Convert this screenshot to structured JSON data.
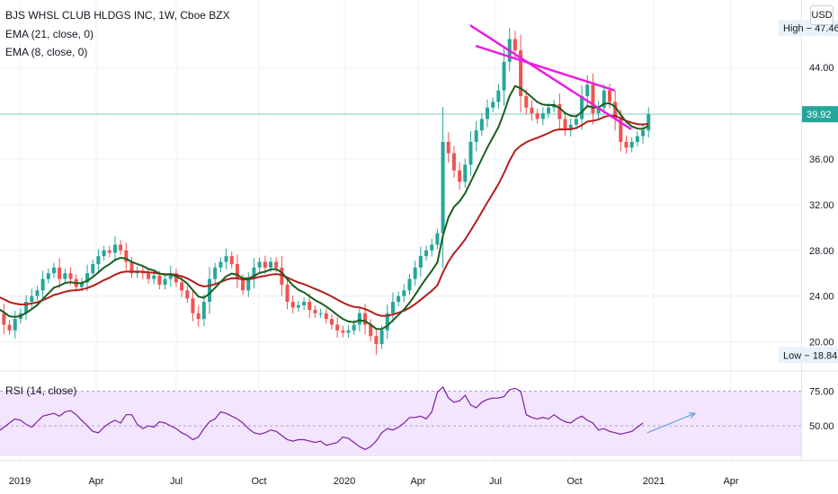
{
  "header": {
    "title": "BJS WHSL CLUB HLDGS INC, 1W, Cboe BZX",
    "ema21_label": "EMA (21, close, 0)",
    "ema8_label": "EMA (8, close, 0)",
    "currency": "USD"
  },
  "rsi_label": "RSI (14, close)",
  "colors": {
    "up": "#26a69a",
    "down": "#ef5350",
    "ema21": "#b71c1c",
    "ema8": "#1b5e20",
    "trendline": "#e91ee3",
    "rsi": "#7b1fa2",
    "rsi_band": "#f3e5fd",
    "arrow": "#4a90e2",
    "price_line": "#26a69a",
    "price_box": "#26a69a"
  },
  "price_axis": {
    "ticks": [
      "20.00",
      "24.00",
      "28.00",
      "32.00",
      "36.00",
      "44.00"
    ],
    "high_label": "High",
    "high_value": "47.46",
    "low_label": "Low",
    "low_value": "18.84",
    "last_price": "39.92"
  },
  "rsi_axis": {
    "ticks": [
      "75.00",
      "50.00"
    ]
  },
  "time_axis": {
    "labels": [
      "2019",
      "Apr",
      "Jul",
      "Oct",
      "2020",
      "Apr",
      "Jul",
      "Oct",
      "2021",
      "Apr"
    ]
  },
  "chart_data": {
    "type": "candlestick",
    "timeframe": "1W",
    "ylim": [
      18.0,
      48.5
    ],
    "closes": [
      23.0,
      22.5,
      21.5,
      21.0,
      22.0,
      22.5,
      23.5,
      24.0,
      24.5,
      25.5,
      26.0,
      26.5,
      25.5,
      26.0,
      25.5,
      24.8,
      25.2,
      26.0,
      26.8,
      27.5,
      28.0,
      27.8,
      28.5,
      28.0,
      27.0,
      26.0,
      26.2,
      26.0,
      25.5,
      25.8,
      25.0,
      25.5,
      26.0,
      25.2,
      24.5,
      23.8,
      22.5,
      22.0,
      23.5,
      25.5,
      26.5,
      27.0,
      27.5,
      26.8,
      25.5,
      24.5,
      25.5,
      26.5,
      27.0,
      26.5,
      27.0,
      26.5,
      25.0,
      23.5,
      23.0,
      23.2,
      23.5,
      22.8,
      22.5,
      22.5,
      22.0,
      21.5,
      21.0,
      20.8,
      21.0,
      21.5,
      22.5,
      21.5,
      20.5,
      19.8,
      21.0,
      22.5,
      23.5,
      24.0,
      24.5,
      25.5,
      26.5,
      27.5,
      28.0,
      28.5,
      29.5,
      37.5,
      36.5,
      35.0,
      34.0,
      35.5,
      37.5,
      38.5,
      39.5,
      40.5,
      41.0,
      42.0,
      44.5,
      46.5,
      45.5,
      41.5,
      40.5,
      40.0,
      39.5,
      40.0,
      40.5,
      40.8,
      39.5,
      38.5,
      39.0,
      39.5,
      41.5,
      42.5,
      40.0,
      40.5,
      42.0,
      41.0,
      39.5,
      37.5,
      37.0,
      37.5,
      38.0,
      38.5,
      39.92
    ],
    "ema8_start": 23.0,
    "ema21_start": 24.2,
    "high": 47.46,
    "low": 18.84,
    "last": 39.92,
    "trendlines": [
      {
        "from": [
          "2020-08-10",
          47.7
        ],
        "to": [
          "2021-03-01",
          38.6
        ]
      },
      {
        "from": [
          "2020-08-17",
          45.9
        ],
        "to": [
          "2021-02-08",
          42.0
        ]
      }
    ],
    "rsi": {
      "ylim": [
        30,
        85
      ],
      "bands": [
        50,
        75
      ],
      "values": [
        41,
        46,
        49,
        52,
        55,
        54,
        51,
        49,
        53,
        57,
        58,
        59,
        57,
        60,
        61,
        58,
        54,
        50,
        46,
        45,
        49,
        52,
        54,
        52,
        58,
        58,
        51,
        48,
        50,
        49,
        53,
        52,
        50,
        48,
        45,
        43,
        40,
        42,
        48,
        53,
        55,
        60,
        59,
        57,
        55,
        52,
        48,
        45,
        44,
        45,
        47,
        46,
        43,
        40,
        39,
        40,
        40,
        39,
        38,
        39,
        36,
        37,
        38,
        42,
        41,
        38,
        35,
        33,
        35,
        39,
        45,
        48,
        47,
        49,
        52,
        56,
        56,
        57,
        55,
        60,
        74,
        78,
        70,
        67,
        68,
        72,
        65,
        63,
        67,
        69,
        70,
        70,
        71,
        76,
        77,
        75,
        58,
        56,
        55,
        56,
        55,
        58,
        55,
        53,
        52,
        55,
        57,
        54,
        52,
        47,
        48,
        46,
        45,
        44,
        45,
        46,
        49,
        52
      ]
    }
  }
}
